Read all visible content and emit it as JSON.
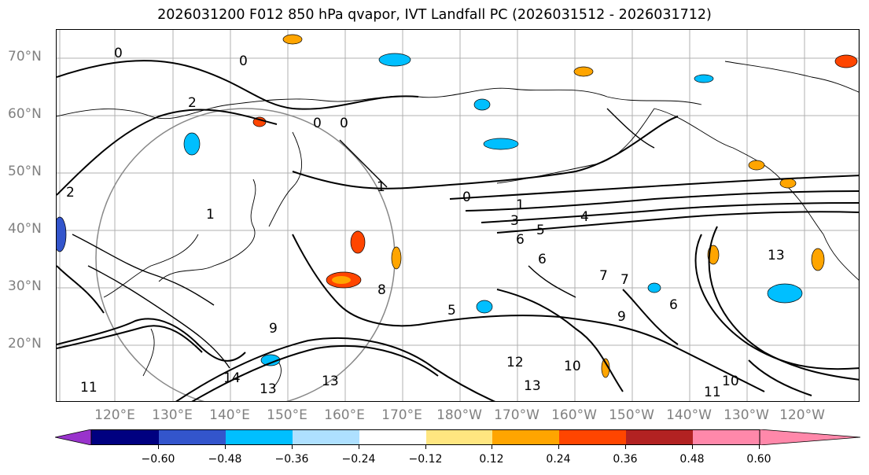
{
  "title": "2026031200 F012 850 hPa qvapor, IVT Landfall PC (2026031512 - 2026031712)",
  "lat_labels": [
    "70°N",
    "60°N",
    "50°N",
    "40°N",
    "30°N",
    "20°N"
  ],
  "lon_labels": [
    "120°E",
    "130°E",
    "140°E",
    "150°E",
    "160°E",
    "170°E",
    "180°W",
    "170°W",
    "160°W",
    "150°W",
    "140°W",
    "130°W",
    "120°W"
  ],
  "colorbar": {
    "ticks": [
      "−0.60",
      "−0.48",
      "−0.36",
      "−0.24",
      "−0.12",
      "0.12",
      "0.24",
      "0.36",
      "0.48",
      "0.60"
    ],
    "colors": [
      "#9933cc",
      "#000080",
      "#3355cc",
      "#00bfff",
      "#aee0ff",
      "#ffffff",
      "#ffe680",
      "#ffa500",
      "#ff4500",
      "#b22222",
      "#ff88aa"
    ]
  },
  "contour_labels": [
    "0",
    "0",
    "0",
    "0",
    "0",
    "2",
    "2",
    "1",
    "1",
    "1",
    "3",
    "4",
    "5",
    "6",
    "6",
    "9",
    "9",
    "10",
    "10",
    "11",
    "12",
    "13",
    "13",
    "13",
    "14",
    "5",
    "7",
    "6",
    "7",
    "11",
    "8",
    "13"
  ]
}
